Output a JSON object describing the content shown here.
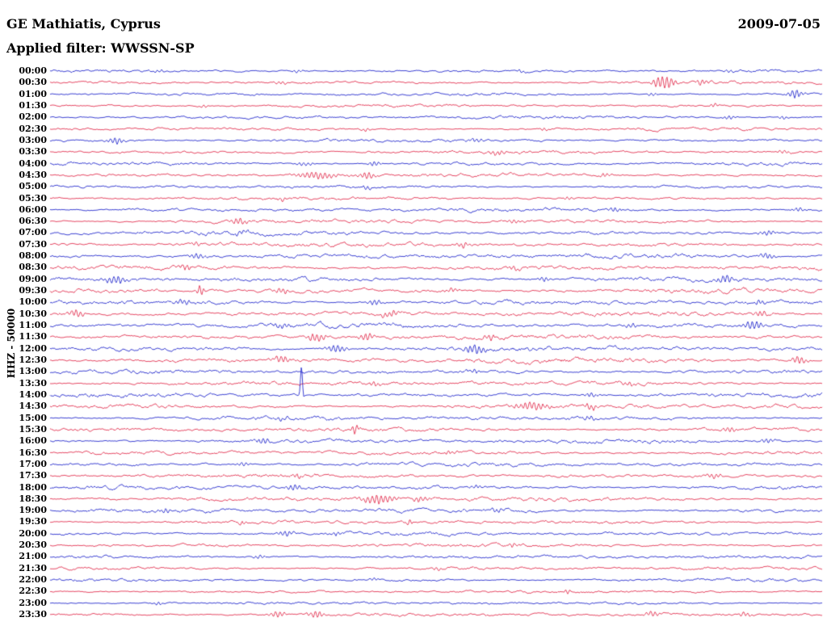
{
  "header": {
    "station": "GE Mathiatis, Cyprus",
    "date": "2009-07-05",
    "filter": "Applied filter: WWSSN-SP"
  },
  "side_label": "HHZ - 50000",
  "colors": {
    "blue": "#0b12c8",
    "red": "#e0193c",
    "background": "#ffffff",
    "text": "#000000"
  },
  "chart_data": {
    "type": "line",
    "title": "24-hour helicorder seismogram, 48 half-hour traces, alternating blue/red",
    "station": "GE Mathiatis, Cyprus",
    "date": "2009-07-05",
    "filter": "WWSSN-SP",
    "channel_scale": "HHZ - 50000",
    "row_minutes": 30,
    "events_format": "[x_fraction_of_row, peak_amplitude_px, envelope_width_fraction, optional_freq]",
    "rows": [
      {
        "label": "00:00",
        "color": "blue",
        "amp": 1.0,
        "events": [
          [
            0.14,
            1.5,
            0.01
          ],
          [
            0.32,
            1.5,
            0.008
          ],
          [
            0.61,
            1.5,
            0.006
          ],
          [
            0.88,
            1.5,
            0.006
          ]
        ]
      },
      {
        "label": "00:30",
        "color": "red",
        "amp": 1.1,
        "events": [
          [
            0.795,
            7.5,
            0.014
          ],
          [
            0.845,
            3,
            0.008
          ],
          [
            0.3,
            1.5,
            0.01
          ]
        ]
      },
      {
        "label": "01:00",
        "color": "blue",
        "amp": 1.0,
        "events": [
          [
            0.965,
            5,
            0.009
          ],
          [
            0.78,
            1.8,
            0.006
          ]
        ]
      },
      {
        "label": "01:30",
        "color": "red",
        "amp": 1.0,
        "events": [
          [
            0.86,
            2,
            0.006
          ],
          [
            0.2,
            1.5,
            0.006
          ]
        ]
      },
      {
        "label": "02:00",
        "color": "blue",
        "amp": 1.1,
        "events": [
          [
            0.88,
            2.2,
            0.008
          ],
          [
            0.95,
            2,
            0.006
          ]
        ]
      },
      {
        "label": "02:30",
        "color": "red",
        "amp": 1.1,
        "events": [
          [
            0.64,
            2,
            0.006
          ],
          [
            0.41,
            1.8,
            0.006
          ]
        ]
      },
      {
        "label": "03:00",
        "color": "blue",
        "amp": 1.1,
        "events": [
          [
            0.085,
            4,
            0.009
          ],
          [
            0.55,
            2,
            0.008
          ]
        ]
      },
      {
        "label": "03:30",
        "color": "red",
        "amp": 1.2,
        "events": [
          [
            0.58,
            2.5,
            0.01
          ],
          [
            0.95,
            2,
            0.008
          ]
        ]
      },
      {
        "label": "04:00",
        "color": "blue",
        "amp": 1.2,
        "events": [
          [
            0.42,
            2.5,
            0.008
          ],
          [
            0.33,
            2,
            0.012
          ]
        ]
      },
      {
        "label": "04:30",
        "color": "red",
        "amp": 1.2,
        "events": [
          [
            0.345,
            4,
            0.025
          ],
          [
            0.41,
            3.5,
            0.012
          ],
          [
            0.72,
            2,
            0.008
          ]
        ]
      },
      {
        "label": "05:00",
        "color": "blue",
        "amp": 1.1,
        "events": [
          [
            0.41,
            2,
            0.006
          ]
        ]
      },
      {
        "label": "05:30",
        "color": "red",
        "amp": 1.1,
        "events": [
          [
            0.3,
            2,
            0.006
          ],
          [
            0.67,
            1.8,
            0.006
          ]
        ]
      },
      {
        "label": "06:00",
        "color": "blue",
        "amp": 1.3,
        "events": [
          [
            0.73,
            2.5,
            0.01
          ],
          [
            0.97,
            2.5,
            0.008
          ]
        ]
      },
      {
        "label": "06:30",
        "color": "red",
        "amp": 1.3,
        "events": [
          [
            0.245,
            3.5,
            0.01
          ],
          [
            0.6,
            2,
            0.008
          ]
        ]
      },
      {
        "label": "07:00",
        "color": "blue",
        "amp": 1.5,
        "events": [
          [
            0.93,
            2.8,
            0.01
          ],
          [
            0.25,
            2,
            0.01
          ]
        ]
      },
      {
        "label": "07:30",
        "color": "red",
        "amp": 1.5,
        "events": [
          [
            0.535,
            3,
            0.008
          ],
          [
            0.19,
            2,
            0.008
          ]
        ]
      },
      {
        "label": "08:00",
        "color": "blue",
        "amp": 1.6,
        "events": [
          [
            0.19,
            3,
            0.01
          ],
          [
            0.93,
            3,
            0.01
          ]
        ]
      },
      {
        "label": "08:30",
        "color": "red",
        "amp": 1.6,
        "events": [
          [
            0.175,
            3,
            0.008
          ],
          [
            0.6,
            2.5,
            0.008
          ]
        ]
      },
      {
        "label": "09:00",
        "color": "blue",
        "amp": 1.6,
        "events": [
          [
            0.085,
            4.5,
            0.014
          ],
          [
            0.875,
            4,
            0.012
          ],
          [
            0.64,
            2.5,
            0.008
          ]
        ]
      },
      {
        "label": "09:30",
        "color": "red",
        "amp": 1.6,
        "events": [
          [
            0.195,
            6.5,
            0.004
          ],
          [
            0.3,
            3,
            0.01
          ],
          [
            0.52,
            2.5,
            0.008
          ]
        ]
      },
      {
        "label": "10:00",
        "color": "blue",
        "amp": 1.7,
        "events": [
          [
            0.175,
            3,
            0.01
          ],
          [
            0.42,
            3,
            0.01
          ],
          [
            0.92,
            2.5,
            0.008
          ]
        ]
      },
      {
        "label": "10:30",
        "color": "red",
        "amp": 1.7,
        "events": [
          [
            0.035,
            4,
            0.01
          ],
          [
            0.44,
            3.5,
            0.012
          ],
          [
            0.92,
            3,
            0.01
          ]
        ]
      },
      {
        "label": "11:00",
        "color": "blue",
        "amp": 1.7,
        "events": [
          [
            0.3,
            3,
            0.01
          ],
          [
            0.91,
            4.5,
            0.014
          ],
          [
            0.75,
            2.5,
            0.008
          ]
        ]
      },
      {
        "label": "11:30",
        "color": "red",
        "amp": 1.7,
        "events": [
          [
            0.345,
            4.5,
            0.012
          ],
          [
            0.41,
            4,
            0.01
          ],
          [
            0.57,
            3,
            0.008
          ]
        ]
      },
      {
        "label": "12:00",
        "color": "blue",
        "amp": 1.7,
        "events": [
          [
            0.37,
            4.5,
            0.012
          ],
          [
            0.55,
            5,
            0.012
          ]
        ]
      },
      {
        "label": "12:30",
        "color": "red",
        "amp": 1.8,
        "events": [
          [
            0.3,
            3.5,
            0.01
          ],
          [
            0.97,
            4,
            0.01
          ]
        ]
      },
      {
        "label": "13:00",
        "color": "blue",
        "amp": 1.5,
        "events": [
          [
            0.55,
            2.5,
            0.008
          ]
        ]
      },
      {
        "label": "13:30",
        "color": "red",
        "amp": 1.5,
        "events": [
          [
            0.42,
            2.5,
            0.008
          ],
          [
            0.75,
            2,
            0.008
          ]
        ]
      },
      {
        "label": "14:00",
        "color": "blue",
        "amp": 1.5,
        "events": [
          [
            0.326,
            38,
            0.0022,
            0.5
          ],
          [
            0.7,
            2.5,
            0.008
          ]
        ]
      },
      {
        "label": "14:30",
        "color": "red",
        "amp": 1.5,
        "events": [
          [
            0.625,
            4.5,
            0.02
          ],
          [
            0.7,
            3,
            0.01
          ]
        ]
      },
      {
        "label": "15:00",
        "color": "blue",
        "amp": 1.4,
        "events": [
          [
            0.7,
            2.5,
            0.008
          ],
          [
            0.3,
            2,
            0.008
          ]
        ]
      },
      {
        "label": "15:30",
        "color": "red",
        "amp": 1.4,
        "events": [
          [
            0.395,
            5,
            0.004
          ],
          [
            0.88,
            2.5,
            0.008
          ]
        ]
      },
      {
        "label": "16:00",
        "color": "blue",
        "amp": 1.4,
        "events": [
          [
            0.275,
            3,
            0.01
          ],
          [
            0.93,
            2.5,
            0.008
          ]
        ]
      },
      {
        "label": "16:30",
        "color": "red",
        "amp": 1.4,
        "events": [
          [
            0.52,
            2,
            0.008
          ]
        ]
      },
      {
        "label": "17:00",
        "color": "blue",
        "amp": 1.3,
        "events": [
          [
            0.25,
            2,
            0.008
          ]
        ]
      },
      {
        "label": "17:30",
        "color": "red",
        "amp": 1.4,
        "events": [
          [
            0.86,
            3,
            0.01
          ],
          [
            0.32,
            2,
            0.008
          ]
        ]
      },
      {
        "label": "18:00",
        "color": "blue",
        "amp": 1.4,
        "events": [
          [
            0.315,
            3,
            0.01
          ],
          [
            0.55,
            2,
            0.008
          ]
        ]
      },
      {
        "label": "18:30",
        "color": "red",
        "amp": 1.5,
        "events": [
          [
            0.425,
            5,
            0.02
          ],
          [
            0.48,
            3,
            0.01
          ]
        ]
      },
      {
        "label": "19:00",
        "color": "blue",
        "amp": 1.4,
        "events": [
          [
            0.15,
            2.5,
            0.008
          ],
          [
            0.58,
            2.5,
            0.008
          ]
        ]
      },
      {
        "label": "19:30",
        "color": "red",
        "amp": 1.3,
        "events": [
          [
            0.465,
            3.5,
            0.004
          ],
          [
            0.25,
            2,
            0.006
          ]
        ]
      },
      {
        "label": "20:00",
        "color": "blue",
        "amp": 1.3,
        "events": [
          [
            0.305,
            3,
            0.01
          ],
          [
            0.37,
            2.5,
            0.008
          ]
        ]
      },
      {
        "label": "20:30",
        "color": "red",
        "amp": 1.2,
        "events": [
          [
            0.6,
            2,
            0.006
          ]
        ]
      },
      {
        "label": "21:00",
        "color": "blue",
        "amp": 1.2,
        "events": [
          [
            0.27,
            2,
            0.008
          ]
        ]
      },
      {
        "label": "21:30",
        "color": "red",
        "amp": 1.1,
        "events": [
          [
            0.5,
            1.8,
            0.006
          ]
        ]
      },
      {
        "label": "22:00",
        "color": "blue",
        "amp": 1.1,
        "events": [
          [
            0.42,
            2,
            0.006
          ]
        ]
      },
      {
        "label": "22:30",
        "color": "red",
        "amp": 1.0,
        "events": [
          [
            0.67,
            1.8,
            0.006
          ]
        ]
      },
      {
        "label": "23:00",
        "color": "blue",
        "amp": 1.0,
        "events": [
          [
            0.14,
            2,
            0.006
          ]
        ]
      },
      {
        "label": "23:30",
        "color": "red",
        "amp": 1.1,
        "events": [
          [
            0.295,
            3.5,
            0.01
          ],
          [
            0.345,
            4,
            0.01
          ],
          [
            0.78,
            3,
            0.01
          ],
          [
            0.9,
            2.5,
            0.008
          ]
        ]
      }
    ]
  }
}
